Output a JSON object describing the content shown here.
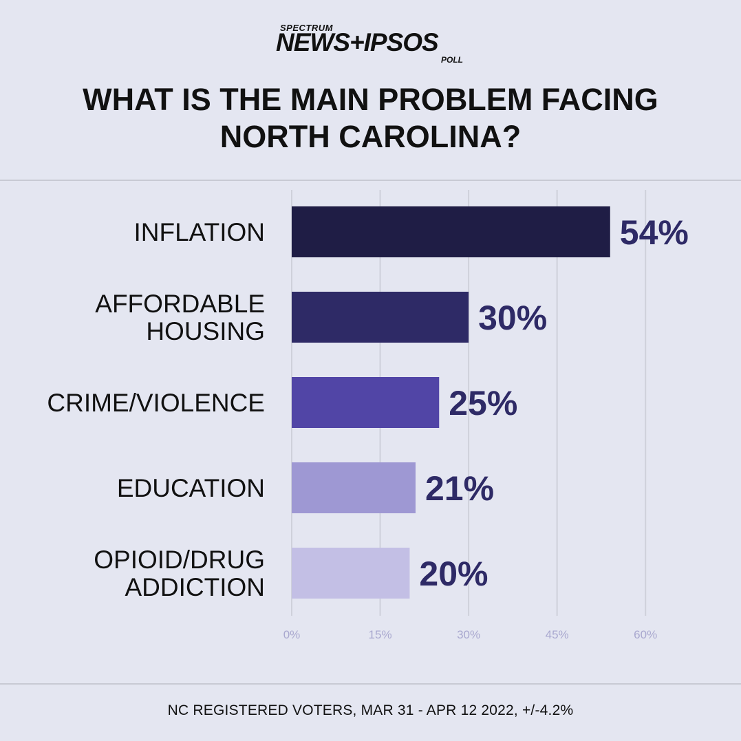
{
  "logo": {
    "small": "SPECTRUM",
    "main": "NEWS+IPSOS",
    "poll": "POLL"
  },
  "title": {
    "line1": "WHAT IS THE MAIN PROBLEM FACING",
    "line2": "NORTH CAROLINA?"
  },
  "footer": "NC REGISTERED VOTERS, MAR 31 - APR 12 2022, +/-4.2%",
  "chart_data": {
    "type": "bar",
    "orientation": "horizontal",
    "categories": [
      [
        "INFLATION"
      ],
      [
        "AFFORDABLE",
        "HOUSING"
      ],
      [
        "CRIME/VIOLENCE"
      ],
      [
        "EDUCATION"
      ],
      [
        "OPIOID/DRUG",
        "ADDICTION"
      ]
    ],
    "values": [
      54,
      30,
      25,
      21,
      20
    ],
    "value_labels": [
      "54%",
      "30%",
      "25%",
      "21%",
      "20%"
    ],
    "bar_colors": [
      "#1f1d45",
      "#2e2a66",
      "#5145a6",
      "#9e98d3",
      "#c3bfe5"
    ],
    "value_label_color": "#2e2a66",
    "xlim": [
      0,
      60
    ],
    "xticks": [
      0,
      15,
      30,
      45,
      60
    ],
    "xtick_labels": [
      "0%",
      "15%",
      "30%",
      "45%",
      "60%"
    ],
    "grid": true
  }
}
